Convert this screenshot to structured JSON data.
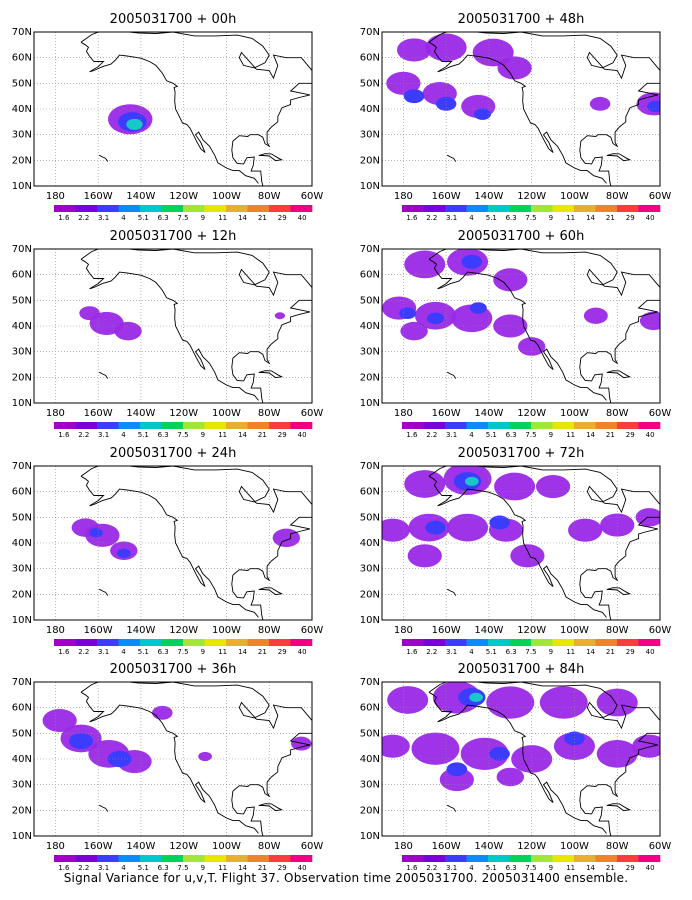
{
  "figure_caption": "Signal Variance for u,v,T. Flight 37. Observation time 2005031700. 2005031400 ensemble.",
  "colorbar": {
    "labels": [
      "1.6",
      "2.2",
      "3.1",
      "4",
      "5.1",
      "6.3",
      "7.5",
      "9",
      "11",
      "14",
      "21",
      "29",
      "40"
    ],
    "colors": [
      "#a000c8",
      "#7800dc",
      "#3c3cff",
      "#0a8cff",
      "#00c8c8",
      "#00d25a",
      "#a0e632",
      "#e6e600",
      "#e6af2d",
      "#f08228",
      "#fa3c3c",
      "#f00082"
    ]
  },
  "map": {
    "x_ticks": [
      "180",
      "160W",
      "140W",
      "120W",
      "100W",
      "80W",
      "60W"
    ],
    "y_ticks": [
      "10N",
      "20N",
      "30N",
      "40N",
      "50N",
      "60N",
      "70N"
    ],
    "lon_range": [
      -190,
      -60
    ],
    "lat_range": [
      10,
      70
    ],
    "grid": "dotted"
  },
  "panels": [
    {
      "title": "2005031700 + 00h",
      "blobs": [
        {
          "lon": -145,
          "lat": 36,
          "r": 6.5,
          "level": 0
        },
        {
          "lon": -144,
          "lat": 35,
          "r": 4.2,
          "level": 1
        },
        {
          "lon": -143,
          "lat": 34,
          "r": 2.4,
          "level": 2
        }
      ]
    },
    {
      "title": "2005031700 + 12h",
      "blobs": [
        {
          "lon": -164,
          "lat": 45,
          "r": 3,
          "level": 0
        },
        {
          "lon": -156,
          "lat": 41,
          "r": 5,
          "level": 0
        },
        {
          "lon": -146,
          "lat": 38,
          "r": 4,
          "level": 0
        },
        {
          "lon": -75,
          "lat": 44,
          "r": 1.5,
          "level": 0
        }
      ]
    },
    {
      "title": "2005031700 + 24h",
      "blobs": [
        {
          "lon": -166,
          "lat": 46,
          "r": 4,
          "level": 0
        },
        {
          "lon": -158,
          "lat": 43,
          "r": 5,
          "level": 0
        },
        {
          "lon": -148,
          "lat": 37,
          "r": 4,
          "level": 0
        },
        {
          "lon": -161,
          "lat": 44,
          "r": 2,
          "level": 1
        },
        {
          "lon": -148,
          "lat": 36,
          "r": 2,
          "level": 1
        },
        {
          "lon": -72,
          "lat": 42,
          "r": 4,
          "level": 0
        }
      ]
    },
    {
      "title": "2005031700 + 36h",
      "blobs": [
        {
          "lon": -178,
          "lat": 55,
          "r": 5,
          "level": 0
        },
        {
          "lon": -168,
          "lat": 48,
          "r": 6,
          "level": 0
        },
        {
          "lon": -155,
          "lat": 42,
          "r": 6,
          "level": 0
        },
        {
          "lon": -143,
          "lat": 39,
          "r": 5,
          "level": 0
        },
        {
          "lon": -168,
          "lat": 47,
          "r": 3.5,
          "level": 1
        },
        {
          "lon": -150,
          "lat": 40,
          "r": 3.5,
          "level": 1
        },
        {
          "lon": -130,
          "lat": 58,
          "r": 3,
          "level": 0
        },
        {
          "lon": -110,
          "lat": 41,
          "r": 2,
          "level": 0
        },
        {
          "lon": -65,
          "lat": 46,
          "r": 3,
          "level": 0
        }
      ]
    },
    {
      "title": "2005031700 + 48h",
      "blobs": [
        {
          "lon": -175,
          "lat": 63,
          "r": 5,
          "level": 0
        },
        {
          "lon": -160,
          "lat": 64,
          "r": 6,
          "level": 0
        },
        {
          "lon": -138,
          "lat": 62,
          "r": 6,
          "level": 0
        },
        {
          "lon": -128,
          "lat": 56,
          "r": 5,
          "level": 0
        },
        {
          "lon": -180,
          "lat": 50,
          "r": 5,
          "level": 0
        },
        {
          "lon": -163,
          "lat": 46,
          "r": 5,
          "level": 0
        },
        {
          "lon": -145,
          "lat": 41,
          "r": 5,
          "level": 0
        },
        {
          "lon": -175,
          "lat": 45,
          "r": 3,
          "level": 1
        },
        {
          "lon": -160,
          "lat": 42,
          "r": 3,
          "level": 1
        },
        {
          "lon": -143,
          "lat": 38,
          "r": 2.5,
          "level": 1
        },
        {
          "lon": -88,
          "lat": 42,
          "r": 3,
          "level": 0
        },
        {
          "lon": -63,
          "lat": 42,
          "r": 5,
          "level": 0
        },
        {
          "lon": -62,
          "lat": 41,
          "r": 2.5,
          "level": 1
        }
      ]
    },
    {
      "title": "2005031700 + 60h",
      "blobs": [
        {
          "lon": -170,
          "lat": 64,
          "r": 6,
          "level": 0
        },
        {
          "lon": -150,
          "lat": 65,
          "r": 6,
          "level": 0
        },
        {
          "lon": -130,
          "lat": 58,
          "r": 5,
          "level": 0
        },
        {
          "lon": -148,
          "lat": 65,
          "r": 3,
          "level": 1
        },
        {
          "lon": -182,
          "lat": 47,
          "r": 5,
          "level": 0
        },
        {
          "lon": -165,
          "lat": 44,
          "r": 6,
          "level": 0
        },
        {
          "lon": -148,
          "lat": 43,
          "r": 6,
          "level": 0
        },
        {
          "lon": -130,
          "lat": 40,
          "r": 5,
          "level": 0
        },
        {
          "lon": -120,
          "lat": 32,
          "r": 4,
          "level": 0
        },
        {
          "lon": -175,
          "lat": 38,
          "r": 4,
          "level": 0
        },
        {
          "lon": -178,
          "lat": 45,
          "r": 2.5,
          "level": 1
        },
        {
          "lon": -165,
          "lat": 43,
          "r": 2.5,
          "level": 1
        },
        {
          "lon": -145,
          "lat": 47,
          "r": 2.5,
          "level": 1
        },
        {
          "lon": -90,
          "lat": 44,
          "r": 3.5,
          "level": 0
        },
        {
          "lon": -63,
          "lat": 42,
          "r": 4,
          "level": 0
        }
      ]
    },
    {
      "title": "2005031700 + 72h",
      "blobs": [
        {
          "lon": -170,
          "lat": 63,
          "r": 6,
          "level": 0
        },
        {
          "lon": -150,
          "lat": 65,
          "r": 7,
          "level": 0
        },
        {
          "lon": -128,
          "lat": 62,
          "r": 6,
          "level": 0
        },
        {
          "lon": -110,
          "lat": 62,
          "r": 5,
          "level": 0
        },
        {
          "lon": -150,
          "lat": 64,
          "r": 4,
          "level": 1
        },
        {
          "lon": -148,
          "lat": 64,
          "r": 2,
          "level": 2
        },
        {
          "lon": -185,
          "lat": 45,
          "r": 5,
          "level": 0
        },
        {
          "lon": -168,
          "lat": 46,
          "r": 6,
          "level": 0
        },
        {
          "lon": -150,
          "lat": 46,
          "r": 6,
          "level": 0
        },
        {
          "lon": -132,
          "lat": 45,
          "r": 5,
          "level": 0
        },
        {
          "lon": -122,
          "lat": 35,
          "r": 5,
          "level": 0
        },
        {
          "lon": -170,
          "lat": 35,
          "r": 5,
          "level": 0
        },
        {
          "lon": -165,
          "lat": 46,
          "r": 3,
          "level": 1
        },
        {
          "lon": -135,
          "lat": 48,
          "r": 3,
          "level": 1
        },
        {
          "lon": -95,
          "lat": 45,
          "r": 5,
          "level": 0
        },
        {
          "lon": -80,
          "lat": 47,
          "r": 5,
          "level": 0
        },
        {
          "lon": -65,
          "lat": 50,
          "r": 4,
          "level": 0
        }
      ]
    },
    {
      "title": "2005031700 + 84h",
      "blobs": [
        {
          "lon": -178,
          "lat": 63,
          "r": 6,
          "level": 0
        },
        {
          "lon": -155,
          "lat": 64,
          "r": 7,
          "level": 0
        },
        {
          "lon": -130,
          "lat": 62,
          "r": 7,
          "level": 0
        },
        {
          "lon": -105,
          "lat": 62,
          "r": 7,
          "level": 0
        },
        {
          "lon": -80,
          "lat": 62,
          "r": 6,
          "level": 0
        },
        {
          "lon": -148,
          "lat": 64,
          "r": 4,
          "level": 1
        },
        {
          "lon": -146,
          "lat": 64,
          "r": 2,
          "level": 2
        },
        {
          "lon": -185,
          "lat": 45,
          "r": 5,
          "level": 0
        },
        {
          "lon": -165,
          "lat": 44,
          "r": 7,
          "level": 0
        },
        {
          "lon": -142,
          "lat": 42,
          "r": 7,
          "level": 0
        },
        {
          "lon": -120,
          "lat": 40,
          "r": 6,
          "level": 0
        },
        {
          "lon": -100,
          "lat": 45,
          "r": 6,
          "level": 0
        },
        {
          "lon": -80,
          "lat": 42,
          "r": 6,
          "level": 0
        },
        {
          "lon": -65,
          "lat": 45,
          "r": 5,
          "level": 0
        },
        {
          "lon": -155,
          "lat": 32,
          "r": 5,
          "level": 0
        },
        {
          "lon": -130,
          "lat": 33,
          "r": 4,
          "level": 0
        },
        {
          "lon": -155,
          "lat": 36,
          "r": 3,
          "level": 1
        },
        {
          "lon": -135,
          "lat": 42,
          "r": 3,
          "level": 1
        },
        {
          "lon": -100,
          "lat": 48,
          "r": 3,
          "level": 1
        }
      ]
    }
  ]
}
